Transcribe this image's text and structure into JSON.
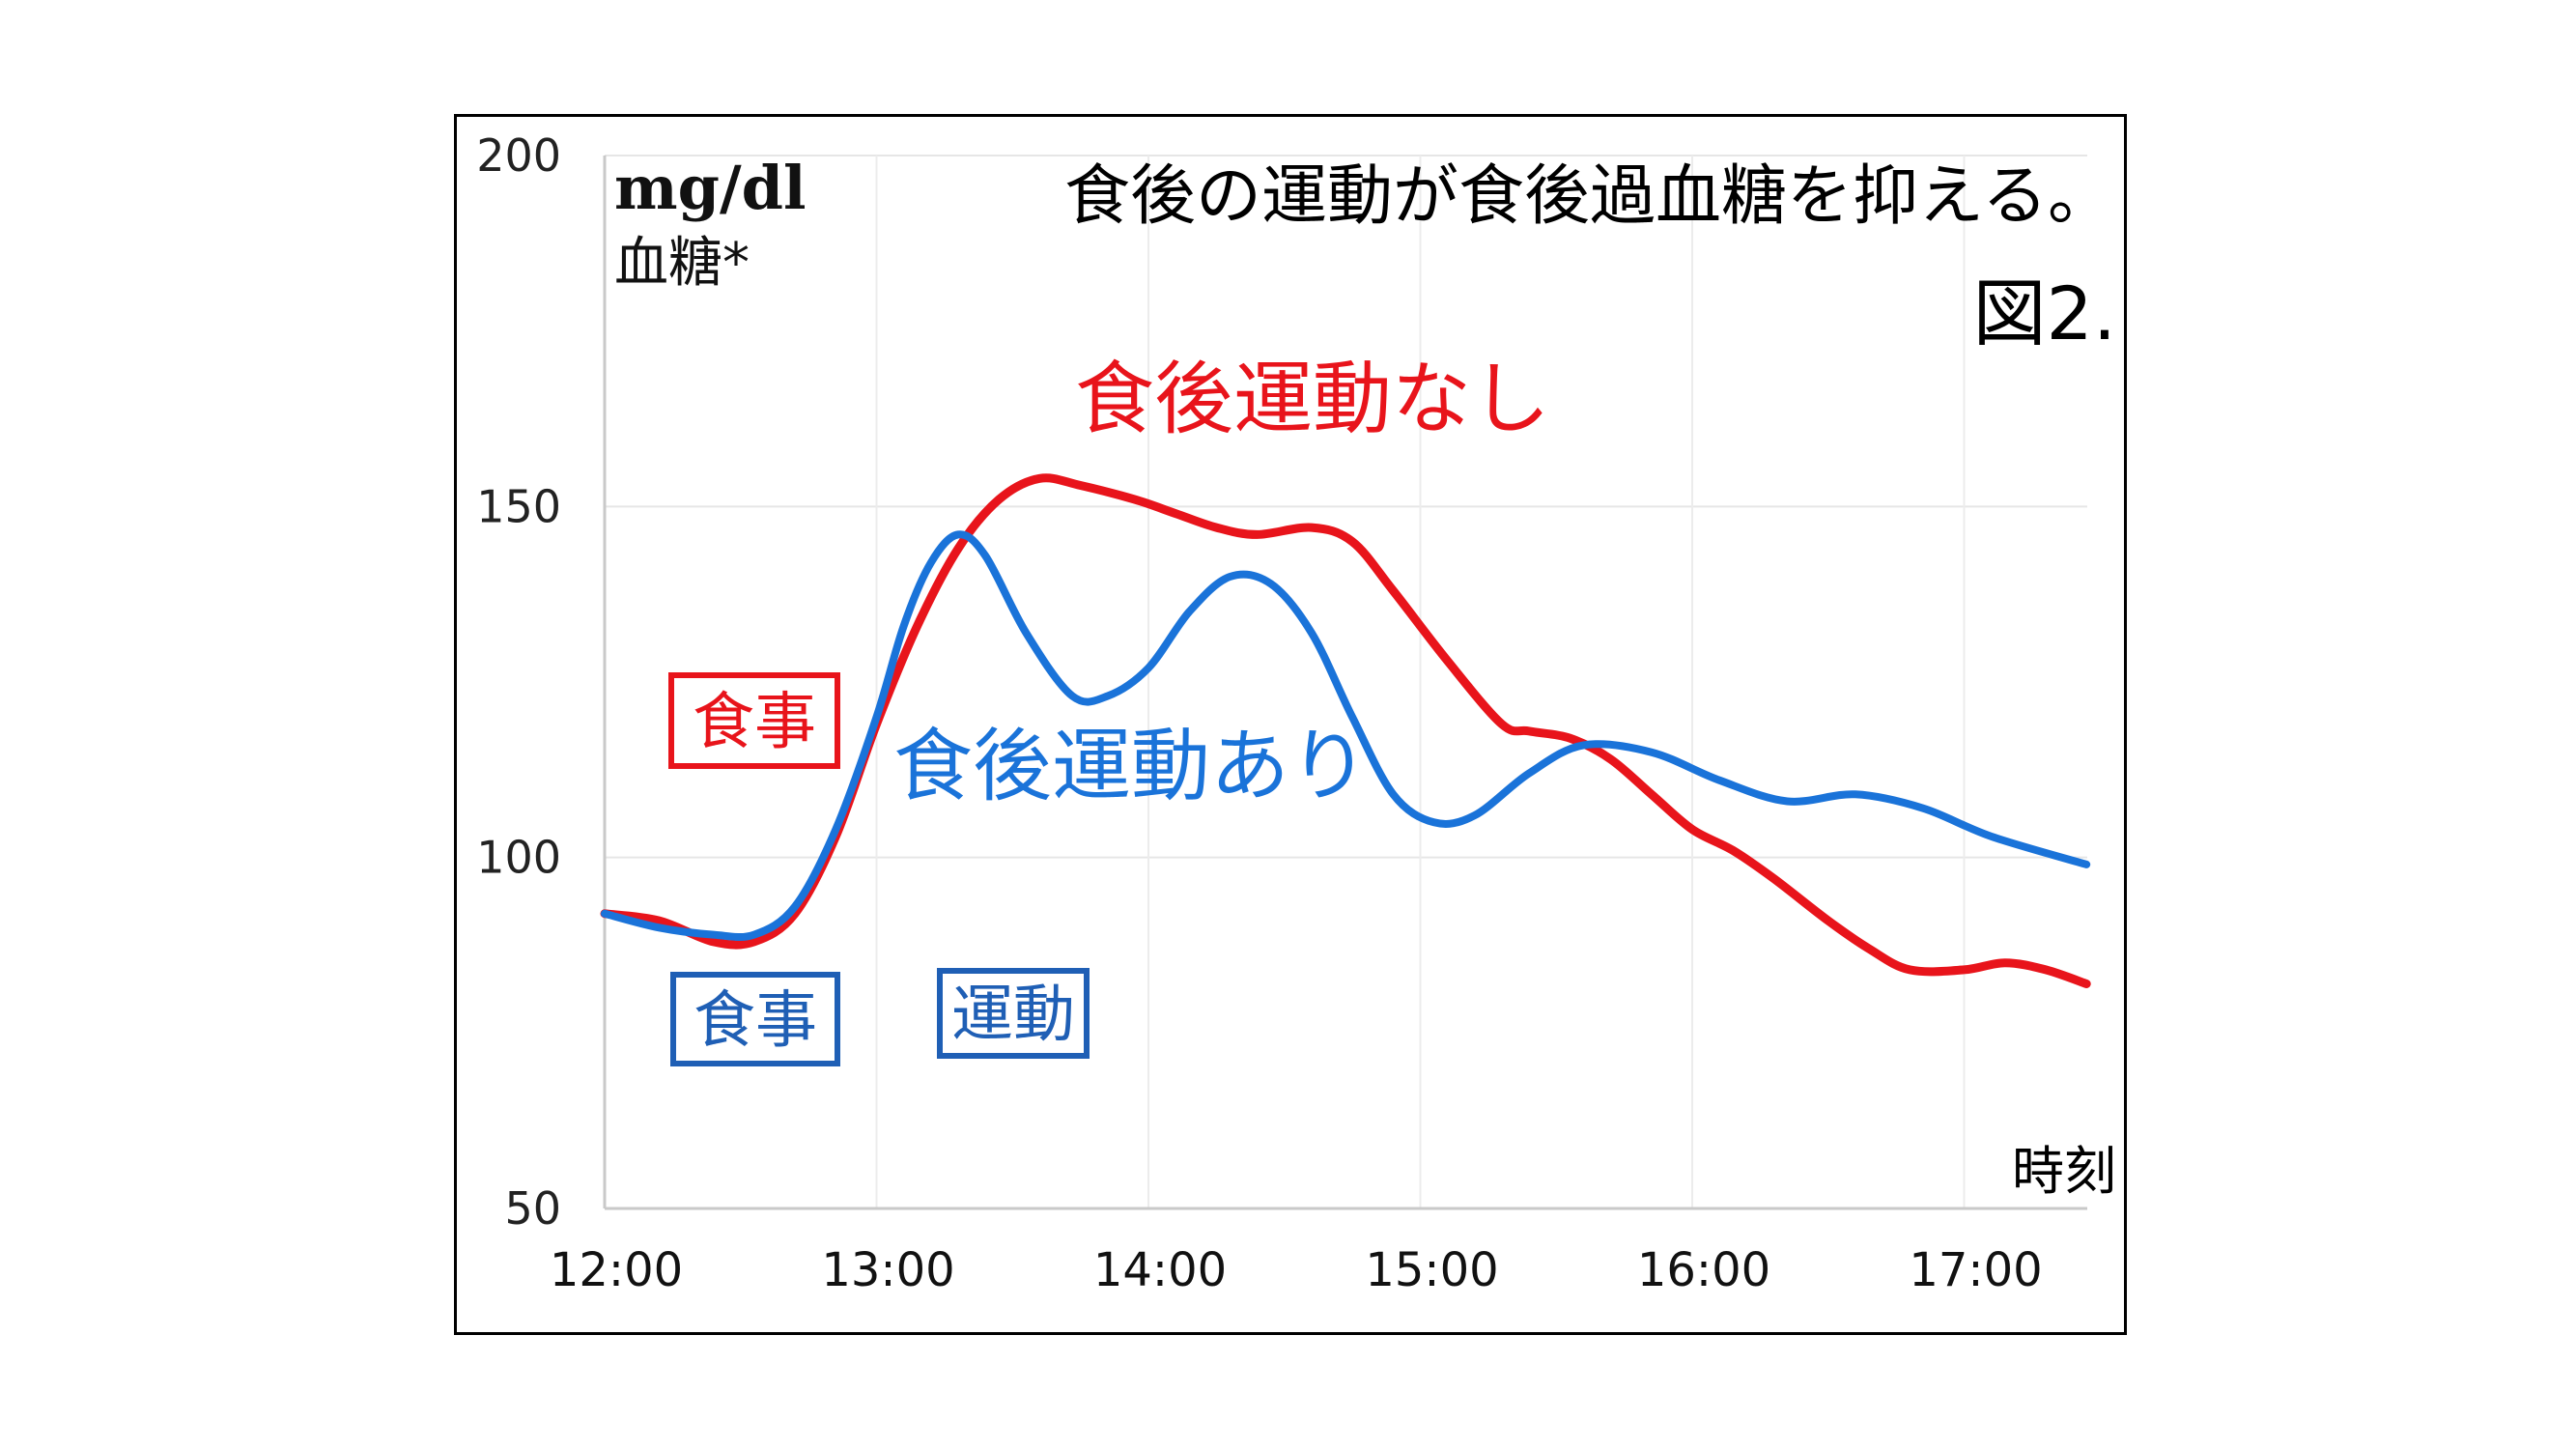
{
  "chart_data": {
    "type": "line",
    "title": "食後の運動が食後過血糖を抑える。",
    "figure_label": "図2.",
    "unit_label": "mg/dl",
    "ylabel": "血糖*",
    "xlabel": "時刻",
    "ylim": [
      50,
      200
    ],
    "yticks": [
      "200",
      "150",
      "100",
      "50"
    ],
    "xticks": [
      "12:00",
      "13:00",
      "14:00",
      "15:00",
      "16:00",
      "17:00"
    ],
    "grid": true,
    "colors": {
      "no_exercise": "#e8141b",
      "exercise": "#1a73d9",
      "box_blue": "#1f5fb5"
    },
    "series": [
      {
        "name": "食後運動なし",
        "color": "#e8141b",
        "points": [
          [
            0.0,
            92
          ],
          [
            0.2,
            91
          ],
          [
            0.4,
            88
          ],
          [
            0.55,
            88
          ],
          [
            0.7,
            92
          ],
          [
            0.85,
            103
          ],
          [
            1.0,
            119
          ],
          [
            1.15,
            133
          ],
          [
            1.3,
            144
          ],
          [
            1.45,
            151
          ],
          [
            1.6,
            154
          ],
          [
            1.75,
            153
          ],
          [
            1.95,
            151
          ],
          [
            2.1,
            149
          ],
          [
            2.25,
            147
          ],
          [
            2.4,
            146
          ],
          [
            2.6,
            147
          ],
          [
            2.75,
            145
          ],
          [
            2.9,
            138
          ],
          [
            3.1,
            128
          ],
          [
            3.3,
            119
          ],
          [
            3.4,
            118
          ],
          [
            3.55,
            117
          ],
          [
            3.7,
            114
          ],
          [
            3.85,
            109
          ],
          [
            4.0,
            104
          ],
          [
            4.15,
            101
          ],
          [
            4.3,
            97
          ],
          [
            4.5,
            91
          ],
          [
            4.65,
            87
          ],
          [
            4.8,
            84
          ],
          [
            5.0,
            84
          ],
          [
            5.15,
            85
          ],
          [
            5.3,
            84
          ],
          [
            5.45,
            82
          ]
        ]
      },
      {
        "name": "食後運動あり",
        "color": "#1a73d9",
        "points": [
          [
            0.0,
            92
          ],
          [
            0.2,
            90
          ],
          [
            0.4,
            89
          ],
          [
            0.55,
            89
          ],
          [
            0.7,
            93
          ],
          [
            0.85,
            104
          ],
          [
            1.0,
            120
          ],
          [
            1.1,
            133
          ],
          [
            1.2,
            142
          ],
          [
            1.3,
            146
          ],
          [
            1.4,
            143
          ],
          [
            1.55,
            132
          ],
          [
            1.72,
            123
          ],
          [
            1.85,
            123
          ],
          [
            2.0,
            127
          ],
          [
            2.15,
            135
          ],
          [
            2.3,
            140
          ],
          [
            2.45,
            139
          ],
          [
            2.6,
            132
          ],
          [
            2.75,
            120
          ],
          [
            2.9,
            109
          ],
          [
            3.05,
            105
          ],
          [
            3.2,
            106
          ],
          [
            3.4,
            112
          ],
          [
            3.6,
            116
          ],
          [
            3.85,
            115
          ],
          [
            4.1,
            111
          ],
          [
            4.35,
            108
          ],
          [
            4.6,
            109
          ],
          [
            4.85,
            107
          ],
          [
            5.1,
            103
          ],
          [
            5.45,
            99
          ]
        ]
      }
    ],
    "annotations": {
      "no_exercise": "食後運動なし",
      "exercise": "食後運動あり",
      "meal_red": "食事",
      "meal_blue": "食事",
      "exercise_box": "運動"
    }
  }
}
